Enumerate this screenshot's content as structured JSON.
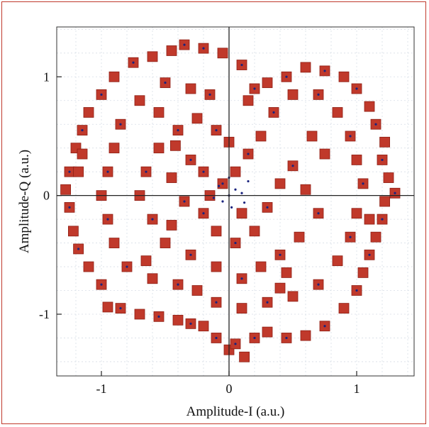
{
  "chart_data": {
    "type": "scatter",
    "title": "",
    "xlabel": "Amplitude-I (a.u.)",
    "ylabel": "Amplitude-Q (a.u.)",
    "xlim": [
      -1.35,
      1.45
    ],
    "ylim": [
      -1.52,
      1.42
    ],
    "x_ticks": [
      -1,
      0,
      1
    ],
    "x_tick_labels": [
      "-1",
      "0",
      "1"
    ],
    "y_ticks": [
      -1,
      0,
      1
    ],
    "y_tick_labels": [
      "-1",
      "0",
      "1"
    ],
    "grid": true,
    "legend": "none",
    "colors": {
      "received_points": "#c0392b",
      "ideal_points": "#1a237e",
      "frame": "#c0392b"
    },
    "series": [
      {
        "marker": "square",
        "color": "#c0392b",
        "points": [
          [
            -0.35,
            1.27
          ],
          [
            -0.45,
            1.22
          ],
          [
            -0.2,
            1.24
          ],
          [
            -0.05,
            1.2
          ],
          [
            0.1,
            1.1
          ],
          [
            -0.6,
            1.17
          ],
          [
            -0.75,
            1.12
          ],
          [
            -0.9,
            1.0
          ],
          [
            -1.0,
            0.85
          ],
          [
            -1.1,
            0.7
          ],
          [
            -1.15,
            0.55
          ],
          [
            -1.2,
            0.4
          ],
          [
            -1.25,
            0.2
          ],
          [
            -1.28,
            0.05
          ],
          [
            -1.25,
            -0.1
          ],
          [
            -1.22,
            -0.3
          ],
          [
            -1.18,
            -0.45
          ],
          [
            -1.1,
            -0.6
          ],
          [
            -1.0,
            -0.75
          ],
          [
            -0.95,
            -0.94
          ],
          [
            -0.85,
            -0.95
          ],
          [
            -0.7,
            -1.0
          ],
          [
            -0.55,
            -1.02
          ],
          [
            -0.4,
            -1.05
          ],
          [
            -0.3,
            -1.08
          ],
          [
            -0.2,
            -1.1
          ],
          [
            -0.1,
            -1.2
          ],
          [
            0.0,
            -1.3
          ],
          [
            0.05,
            -1.25
          ],
          [
            0.12,
            -1.36
          ],
          [
            0.2,
            -1.2
          ],
          [
            0.3,
            -1.15
          ],
          [
            0.45,
            -1.2
          ],
          [
            0.6,
            -1.18
          ],
          [
            0.75,
            -1.1
          ],
          [
            0.9,
            -0.95
          ],
          [
            1.0,
            -0.8
          ],
          [
            1.05,
            -0.65
          ],
          [
            1.1,
            -0.5
          ],
          [
            1.15,
            -0.35
          ],
          [
            1.2,
            -0.2
          ],
          [
            1.22,
            -0.05
          ],
          [
            1.3,
            0.02
          ],
          [
            1.25,
            0.15
          ],
          [
            1.2,
            0.3
          ],
          [
            1.22,
            0.45
          ],
          [
            1.15,
            0.6
          ],
          [
            1.1,
            0.75
          ],
          [
            1.0,
            0.9
          ],
          [
            0.9,
            1.0
          ],
          [
            0.75,
            1.05
          ],
          [
            0.6,
            1.08
          ],
          [
            0.45,
            1.0
          ],
          [
            0.3,
            0.95
          ],
          [
            0.2,
            0.9
          ],
          [
            0.15,
            0.8
          ],
          [
            -0.15,
            0.85
          ],
          [
            -0.3,
            0.9
          ],
          [
            -0.5,
            0.95
          ],
          [
            -0.7,
            0.8
          ],
          [
            -0.85,
            0.6
          ],
          [
            -0.9,
            0.4
          ],
          [
            -0.95,
            0.2
          ],
          [
            -1.0,
            0.0
          ],
          [
            -0.95,
            -0.2
          ],
          [
            -0.9,
            -0.4
          ],
          [
            -0.8,
            -0.6
          ],
          [
            -0.6,
            -0.7
          ],
          [
            -0.4,
            -0.75
          ],
          [
            -0.25,
            -0.8
          ],
          [
            -0.1,
            -0.9
          ],
          [
            0.1,
            -0.95
          ],
          [
            0.3,
            -0.9
          ],
          [
            0.5,
            -0.85
          ],
          [
            0.7,
            -0.75
          ],
          [
            0.85,
            -0.55
          ],
          [
            0.95,
            -0.35
          ],
          [
            1.0,
            -0.15
          ],
          [
            1.05,
            0.1
          ],
          [
            1.0,
            0.3
          ],
          [
            0.95,
            0.5
          ],
          [
            0.85,
            0.7
          ],
          [
            0.7,
            0.85
          ],
          [
            0.5,
            0.85
          ],
          [
            0.35,
            0.7
          ],
          [
            0.25,
            0.5
          ],
          [
            0.15,
            0.35
          ],
          [
            0.05,
            0.2
          ],
          [
            -0.05,
            0.1
          ],
          [
            -0.15,
            0.0
          ],
          [
            -0.2,
            -0.15
          ],
          [
            -0.1,
            -0.3
          ],
          [
            0.05,
            -0.4
          ],
          [
            0.2,
            -0.3
          ],
          [
            0.3,
            -0.1
          ],
          [
            0.4,
            0.1
          ],
          [
            0.5,
            0.25
          ],
          [
            0.6,
            0.05
          ],
          [
            0.7,
            -0.15
          ],
          [
            0.55,
            -0.35
          ],
          [
            0.4,
            -0.5
          ],
          [
            0.25,
            -0.6
          ],
          [
            0.1,
            -0.7
          ],
          [
            -0.1,
            -0.6
          ],
          [
            -0.3,
            -0.5
          ],
          [
            -0.5,
            -0.4
          ],
          [
            -0.6,
            -0.2
          ],
          [
            -0.7,
            0.0
          ],
          [
            -0.65,
            0.2
          ],
          [
            -0.55,
            0.4
          ],
          [
            -0.4,
            0.55
          ],
          [
            -0.25,
            0.65
          ],
          [
            -0.1,
            0.55
          ],
          [
            0.0,
            0.45
          ],
          [
            -0.3,
            0.3
          ],
          [
            -0.45,
            0.15
          ],
          [
            -0.35,
            -0.05
          ],
          [
            -0.45,
            -0.25
          ],
          [
            -0.2,
            0.2
          ],
          [
            0.1,
            -0.15
          ],
          [
            -1.15,
            0.35
          ],
          [
            -1.18,
            0.2
          ],
          [
            1.1,
            -0.2
          ],
          [
            0.4,
            -0.78
          ],
          [
            -0.42,
            0.42
          ],
          [
            0.65,
            0.5
          ],
          [
            -0.65,
            -0.55
          ],
          [
            0.45,
            -0.65
          ],
          [
            -0.55,
            0.7
          ],
          [
            0.75,
            0.35
          ]
        ]
      },
      {
        "marker": "dot",
        "color": "#1a237e",
        "points": [
          [
            -0.35,
            1.27
          ],
          [
            -0.2,
            1.24
          ],
          [
            0.1,
            1.1
          ],
          [
            -0.75,
            1.12
          ],
          [
            -1.0,
            0.85
          ],
          [
            -1.15,
            0.55
          ],
          [
            -1.25,
            0.2
          ],
          [
            -1.25,
            -0.1
          ],
          [
            -1.18,
            -0.45
          ],
          [
            -1.0,
            -0.75
          ],
          [
            -0.85,
            -0.95
          ],
          [
            -0.55,
            -1.02
          ],
          [
            -0.3,
            -1.08
          ],
          [
            -0.1,
            -1.2
          ],
          [
            0.05,
            -1.25
          ],
          [
            0.2,
            -1.2
          ],
          [
            0.45,
            -1.2
          ],
          [
            0.75,
            -1.1
          ],
          [
            1.0,
            -0.8
          ],
          [
            1.1,
            -0.5
          ],
          [
            1.2,
            -0.2
          ],
          [
            1.3,
            0.02
          ],
          [
            1.2,
            0.3
          ],
          [
            1.15,
            0.6
          ],
          [
            1.0,
            0.9
          ],
          [
            0.75,
            1.05
          ],
          [
            0.45,
            1.0
          ],
          [
            0.2,
            0.9
          ],
          [
            -0.15,
            0.85
          ],
          [
            -0.5,
            0.95
          ],
          [
            -0.85,
            0.6
          ],
          [
            -0.95,
            0.2
          ],
          [
            -0.95,
            -0.2
          ],
          [
            -0.8,
            -0.6
          ],
          [
            -0.4,
            -0.75
          ],
          [
            -0.1,
            -0.9
          ],
          [
            0.3,
            -0.9
          ],
          [
            0.7,
            -0.75
          ],
          [
            0.95,
            -0.35
          ],
          [
            1.05,
            0.1
          ],
          [
            0.95,
            0.5
          ],
          [
            0.7,
            0.85
          ],
          [
            0.35,
            0.7
          ],
          [
            0.15,
            0.35
          ],
          [
            -0.05,
            0.1
          ],
          [
            -0.2,
            -0.15
          ],
          [
            0.05,
            -0.4
          ],
          [
            0.3,
            -0.1
          ],
          [
            0.5,
            0.25
          ],
          [
            0.7,
            -0.15
          ],
          [
            0.4,
            -0.5
          ],
          [
            0.1,
            -0.7
          ],
          [
            -0.3,
            -0.5
          ],
          [
            -0.6,
            -0.2
          ],
          [
            -0.65,
            0.2
          ],
          [
            -0.4,
            0.55
          ],
          [
            -0.1,
            0.55
          ],
          [
            -0.3,
            0.3
          ],
          [
            -0.35,
            -0.05
          ],
          [
            -0.2,
            0.2
          ],
          [
            0.0,
            0.0
          ],
          [
            0.05,
            0.05
          ],
          [
            -0.05,
            -0.05
          ],
          [
            0.1,
            0.02
          ],
          [
            -0.08,
            0.08
          ],
          [
            0.02,
            -0.1
          ],
          [
            0.12,
            -0.06
          ],
          [
            -0.12,
            -0.02
          ],
          [
            0.0,
            0.15
          ],
          [
            0.15,
            0.12
          ]
        ]
      }
    ]
  }
}
